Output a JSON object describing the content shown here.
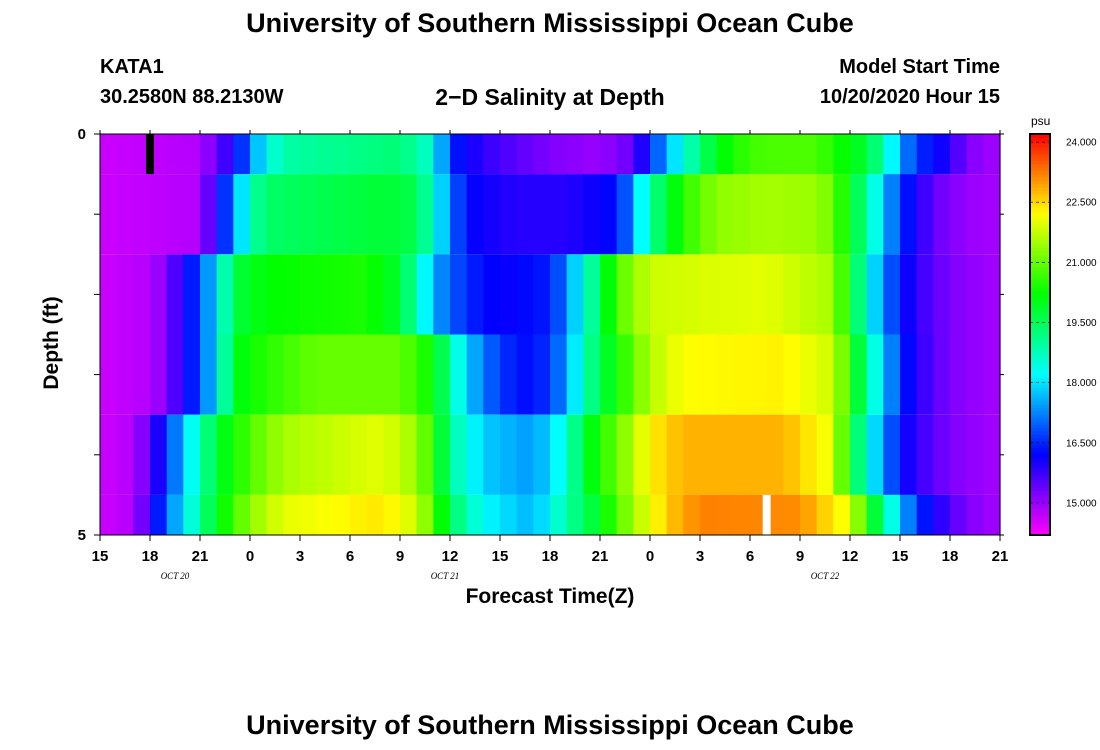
{
  "page": {
    "title_top": "University of Southern Mississippi Ocean Cube",
    "title_bottom": "University of Southern Mississippi Ocean Cube"
  },
  "header": {
    "station": "KATA1",
    "coords": "30.2580N 88.2130W",
    "subtitle": "2−D Salinity at Depth",
    "model_label": "Model Start Time",
    "model_time": "10/20/2020 Hour 15"
  },
  "chart_data": {
    "type": "heatmap",
    "title": "2−D Salinity at Depth",
    "xlabel": "Forecast Time(Z)",
    "ylabel": "Depth (ft)",
    "x_tick_labels": [
      "15",
      "18",
      "21",
      "0",
      "3",
      "6",
      "9",
      "12",
      "15",
      "18",
      "21",
      "0",
      "3",
      "6",
      "9",
      "12",
      "15",
      "18",
      "21"
    ],
    "x_date_labels": [
      {
        "label": "OCT 20",
        "tick_index": 1.5
      },
      {
        "label": "OCT 21",
        "tick_index": 6.9
      },
      {
        "label": "OCT 22",
        "tick_index": 14.5
      }
    ],
    "y_tick_labels": [
      "0",
      "5"
    ],
    "y_range": [
      0,
      5
    ],
    "x_range_hours": [
      0,
      54
    ],
    "colorbar": {
      "unit": "psu",
      "min": 14.2,
      "max": 24.2,
      "ticks": [
        "24.000",
        "22.500",
        "21.000",
        "19.500",
        "18.000",
        "16.500",
        "15.000"
      ]
    },
    "depth_layers": [
      0,
      1,
      2,
      3,
      4
    ],
    "time_step_hours": 1,
    "layer_profiles": [
      [
        [
          0,
          14.6
        ],
        [
          6,
          14.8
        ],
        [
          7,
          15.4
        ],
        [
          8,
          16.0
        ],
        [
          9,
          17.2
        ],
        [
          10,
          18.3
        ],
        [
          11,
          18.9
        ],
        [
          18,
          19.3
        ],
        [
          20,
          18.5
        ],
        [
          21,
          16.5
        ],
        [
          23,
          15.8
        ],
        [
          27,
          15.2
        ],
        [
          30,
          15.0
        ],
        [
          32,
          15.4
        ],
        [
          33,
          16.5
        ],
        [
          34,
          17.5
        ],
        [
          35,
          18.5
        ],
        [
          37,
          20.0
        ],
        [
          39,
          20.7
        ],
        [
          41,
          20.8
        ],
        [
          43,
          20.8
        ],
        [
          44,
          20.4
        ],
        [
          46,
          19.8
        ],
        [
          47,
          18.8
        ],
        [
          48,
          17.5
        ],
        [
          49,
          16.6
        ],
        [
          51,
          15.9
        ],
        [
          52,
          15.2
        ],
        [
          54,
          14.9
        ]
      ],
      [
        [
          0,
          14.6
        ],
        [
          6,
          14.8
        ],
        [
          7,
          16.0
        ],
        [
          8,
          17.2
        ],
        [
          9,
          18.8
        ],
        [
          10,
          19.4
        ],
        [
          17,
          19.8
        ],
        [
          19,
          19.6
        ],
        [
          20,
          18.5
        ],
        [
          21,
          17.2
        ],
        [
          22,
          16.2
        ],
        [
          25,
          15.9
        ],
        [
          28,
          15.9
        ],
        [
          31,
          16.3
        ],
        [
          32,
          17.4
        ],
        [
          33,
          19.0
        ],
        [
          35,
          20.5
        ],
        [
          37,
          21.3
        ],
        [
          40,
          21.5
        ],
        [
          43,
          21.4
        ],
        [
          44,
          21.0
        ],
        [
          45,
          20.0
        ],
        [
          46,
          19.0
        ],
        [
          47,
          17.8
        ],
        [
          48,
          16.6
        ],
        [
          49,
          16.0
        ],
        [
          50,
          15.4
        ],
        [
          52,
          15.0
        ],
        [
          54,
          14.9
        ]
      ],
      [
        [
          0,
          14.6
        ],
        [
          3,
          14.8
        ],
        [
          4,
          15.2
        ],
        [
          5,
          16.0
        ],
        [
          6,
          16.8
        ],
        [
          7,
          18.0
        ],
        [
          8,
          19.7
        ],
        [
          10,
          20.2
        ],
        [
          16,
          20.4
        ],
        [
          18,
          19.8
        ],
        [
          19,
          18.8
        ],
        [
          20,
          17.5
        ],
        [
          22,
          16.5
        ],
        [
          24,
          16.1
        ],
        [
          27,
          16.4
        ],
        [
          28,
          17.2
        ],
        [
          29,
          18.5
        ],
        [
          30,
          19.5
        ],
        [
          31,
          20.8
        ],
        [
          33,
          21.8
        ],
        [
          40,
          22.0
        ],
        [
          44,
          21.5
        ],
        [
          45,
          20.0
        ],
        [
          46,
          18.5
        ],
        [
          47,
          17.2
        ],
        [
          48,
          16.4
        ],
        [
          49,
          15.8
        ],
        [
          51,
          15.2
        ],
        [
          54,
          14.9
        ]
      ],
      [
        [
          0,
          14.6
        ],
        [
          3,
          14.8
        ],
        [
          4,
          15.2
        ],
        [
          5,
          16.0
        ],
        [
          6,
          16.8
        ],
        [
          7,
          18.0
        ],
        [
          8,
          20.0
        ],
        [
          10,
          20.5
        ],
        [
          13,
          21.0
        ],
        [
          18,
          21.0
        ],
        [
          20,
          20.2
        ],
        [
          21,
          19.0
        ],
        [
          22,
          17.8
        ],
        [
          24,
          16.6
        ],
        [
          26,
          16.2
        ],
        [
          28,
          17.3
        ],
        [
          29,
          18.8
        ],
        [
          31,
          20.3
        ],
        [
          33,
          21.6
        ],
        [
          35,
          22.2
        ],
        [
          41,
          22.3
        ],
        [
          44,
          21.8
        ],
        [
          45,
          20.5
        ],
        [
          46,
          19.0
        ],
        [
          47,
          17.8
        ],
        [
          48,
          16.6
        ],
        [
          49,
          15.9
        ],
        [
          51,
          15.2
        ],
        [
          54,
          14.9
        ]
      ],
      [
        [
          0,
          14.6
        ],
        [
          2,
          14.8
        ],
        [
          3,
          15.5
        ],
        [
          4,
          16.5
        ],
        [
          5,
          17.8
        ],
        [
          6,
          18.8
        ],
        [
          7,
          19.8
        ],
        [
          9,
          20.8
        ],
        [
          11,
          21.5
        ],
        [
          17,
          22.0
        ],
        [
          19,
          21.4
        ],
        [
          20,
          20.5
        ],
        [
          21,
          19.0
        ],
        [
          23,
          17.8
        ],
        [
          26,
          17.4
        ],
        [
          28,
          18.5
        ],
        [
          29,
          19.8
        ],
        [
          31,
          21.0
        ],
        [
          33,
          22.3
        ],
        [
          35,
          22.8
        ],
        [
          41,
          22.8
        ],
        [
          44,
          22.0
        ],
        [
          45,
          20.0
        ],
        [
          46,
          18.5
        ],
        [
          47,
          17.3
        ],
        [
          48,
          16.3
        ],
        [
          49,
          15.8
        ],
        [
          51,
          15.2
        ],
        [
          54,
          14.9
        ]
      ],
      [
        [
          0,
          14.6
        ],
        [
          2,
          14.8
        ],
        [
          3,
          15.8
        ],
        [
          4,
          17.0
        ],
        [
          5,
          18.0
        ],
        [
          6,
          19.0
        ],
        [
          7,
          20.0
        ],
        [
          9,
          21.3
        ],
        [
          11,
          22.0
        ],
        [
          17,
          22.4
        ],
        [
          19,
          21.8
        ],
        [
          20,
          20.8
        ],
        [
          21,
          19.5
        ],
        [
          23,
          18.2
        ],
        [
          26,
          17.6
        ],
        [
          28,
          18.9
        ],
        [
          30,
          20.0
        ],
        [
          32,
          21.5
        ],
        [
          34,
          22.6
        ],
        [
          36,
          23.2
        ],
        [
          42,
          23.1
        ],
        [
          45,
          22.0
        ],
        [
          46,
          20.5
        ],
        [
          47,
          19.0
        ],
        [
          48,
          17.8
        ],
        [
          49,
          16.6
        ],
        [
          51,
          15.6
        ],
        [
          52,
          15.2
        ],
        [
          54,
          14.9
        ]
      ]
    ],
    "markers": [
      {
        "name": "start-marker",
        "color": "#000000",
        "time_hours": 3,
        "depth_top": 0,
        "depth_bottom": 0.5
      },
      {
        "name": "white-marker",
        "color": "#ffffff",
        "time_hours": 40,
        "depth_top": 4.5,
        "depth_bottom": 5
      }
    ]
  }
}
